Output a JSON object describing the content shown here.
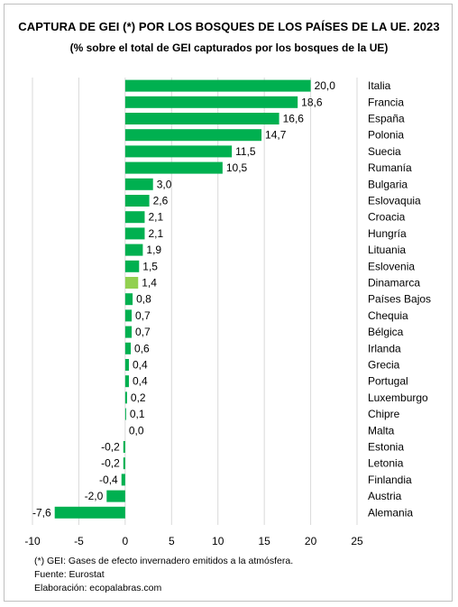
{
  "title": "CAPTURA DE GEI (*) POR LOS BOSQUES DE LOS PAÍSES DE LA UE. 2023",
  "subtitle": "(% sobre el total de GEI capturados por los bosques de la UE)",
  "notes": [
    "(*) GEI: Gases de efecto invernadero emitidos a la atmósfera.",
    "Fuente: Eurostat",
    "Elaboración: ecopalabras.com"
  ],
  "chart_data": {
    "type": "bar",
    "orientation": "horizontal",
    "categories": [
      "Italia",
      "Francia",
      "España",
      "Polonia",
      "Suecia",
      "Rumanía",
      "Bulgaria",
      "Eslovaquia",
      "Croacia",
      "Hungría",
      "Lituania",
      "Eslovenia",
      "Dinamarca",
      "Países Bajos",
      "Chequia",
      "Bélgica",
      "Irlanda",
      "Grecia",
      "Portugal",
      "Luxemburgo",
      "Chipre",
      "Malta",
      "Estonia",
      "Letonia",
      "Finlandia",
      "Austria",
      "Alemania"
    ],
    "values": [
      20.0,
      18.6,
      16.6,
      14.7,
      11.5,
      10.5,
      3.0,
      2.6,
      2.1,
      2.1,
      1.9,
      1.5,
      1.4,
      0.8,
      0.7,
      0.7,
      0.6,
      0.4,
      0.4,
      0.2,
      0.1,
      0.0,
      -0.2,
      -0.2,
      -0.4,
      -2.0,
      -7.6
    ],
    "value_labels": [
      "20,0",
      "18,6",
      "16,6",
      "14,7",
      "11,5",
      "10,5",
      "3,0",
      "2,6",
      "2,1",
      "2,1",
      "1,9",
      "1,5",
      "1,4",
      "0,8",
      "0,7",
      "0,7",
      "0,6",
      "0,4",
      "0,4",
      "0,2",
      "0,1",
      "0,0",
      "-0,2",
      "-0,2",
      "-0,4",
      "-2,0",
      "-7,6"
    ],
    "xlim": [
      -10,
      25
    ],
    "xticks": [
      -10,
      -5,
      0,
      5,
      10,
      15,
      20,
      25
    ],
    "xtick_labels": [
      "-10",
      "-5",
      "0",
      "5",
      "10",
      "15",
      "20",
      "25"
    ],
    "grid": "vertical",
    "colors": {
      "bar": "#00b050",
      "highlight": "#92d050",
      "grid": "#d9d9d9"
    },
    "highlight_category": "Dinamarca"
  }
}
